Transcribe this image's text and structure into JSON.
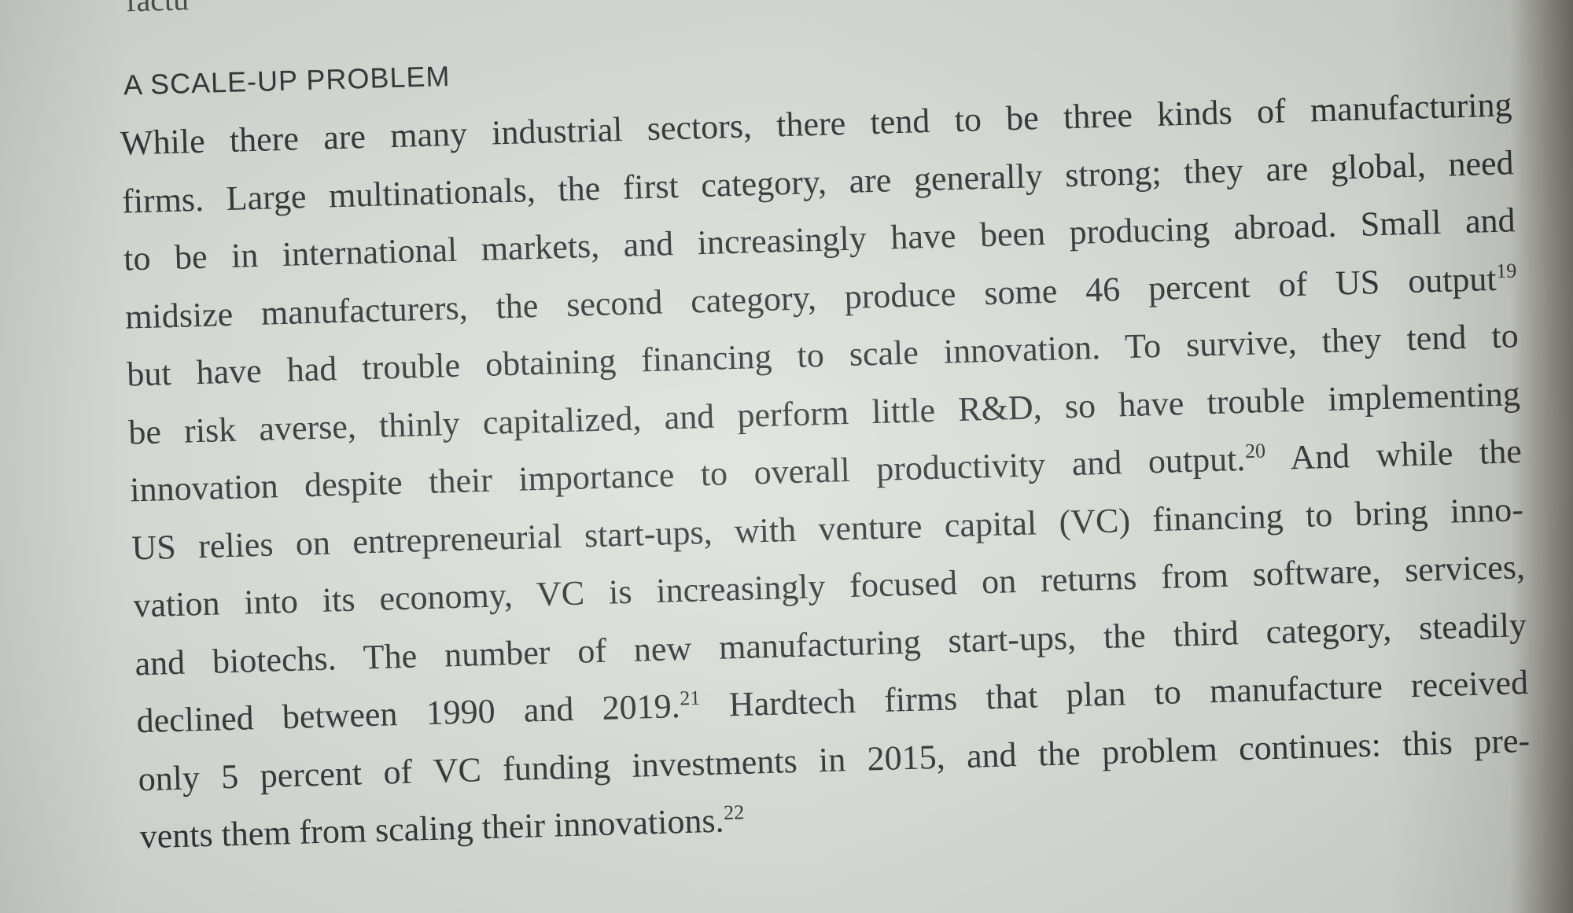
{
  "top_fragment": "factu",
  "heading": "A SCALE-UP PROBLEM",
  "lines": [
    {
      "text": "While there are many industrial sectors, there tend to be three kinds of manufacturing"
    },
    {
      "text": "firms. Large multinationals, the first category, are generally strong; they are global, need"
    },
    {
      "text": "to be in international markets, and increasingly have been producing abroad. Small and"
    },
    {
      "text": "midsize manufacturers, the second category, produce some 46 percent of US output",
      "note": "19"
    },
    {
      "text": "but have had trouble obtaining financing to scale innovation. To survive, they tend to"
    },
    {
      "text": "be risk averse, thinly capitalized, and perform little R&D, so have trouble implementing"
    },
    {
      "text": "innovation despite their importance to overall productivity and output.",
      "note": "20",
      "after": " And while the"
    },
    {
      "text": "US relies on entrepreneurial start-ups, with venture capital (VC) financing to bring inno-"
    },
    {
      "text": "vation into its economy, VC is increasingly focused on returns from software, services,"
    },
    {
      "text": "and biotechs. The number of new manufacturing start-ups, the third category, steadily"
    },
    {
      "text": "declined between 1990 and 2019.",
      "note": "21",
      "after": " Hardtech firms that plan to manufacture received"
    },
    {
      "text": "only 5 percent of VC funding investments in 2015, and the problem continues: this pre-"
    },
    {
      "text": "vents them from scaling their innovations.",
      "note": "22"
    }
  ]
}
